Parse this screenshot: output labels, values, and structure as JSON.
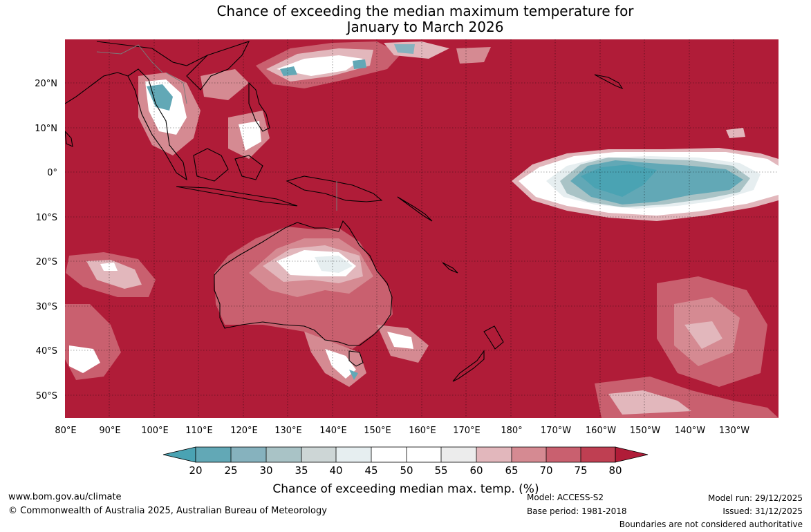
{
  "title": {
    "line1": "Chance of exceeding the median maximum temperature for",
    "line2": "January to March 2026"
  },
  "map": {
    "lon_labels": [
      "80°E",
      "90°E",
      "100°E",
      "110°E",
      "120°E",
      "130°E",
      "140°E",
      "150°E",
      "160°E",
      "170°E",
      "180°",
      "170°W",
      "160°W",
      "150°W",
      "140°W",
      "130°W"
    ],
    "lat_labels": [
      "20°N",
      "10°N",
      "0°",
      "10°S",
      "20°S",
      "30°S",
      "40°S",
      "50°S"
    ],
    "fill_colors": {
      "above_80": "#b01c38",
      "c75_80": "#bf3f52",
      "c70_75": "#c9606f",
      "c65_70": "#d58a92",
      "c60_65": "#e2b7bc",
      "c55_60": "#ececec",
      "c45_55": "#ffffff",
      "c40_45": "#e6eef0",
      "c35_40": "#cdd6d6",
      "c30_35": "#a9c3c6",
      "c25_30": "#86b2be",
      "c20_25": "#62a8b6",
      "below_20": "#4aa3b3"
    }
  },
  "colorbar": {
    "ticks": [
      "20",
      "25",
      "30",
      "35",
      "40",
      "45",
      "50",
      "55",
      "60",
      "65",
      "70",
      "75",
      "80"
    ],
    "label": "Chance of exceeding median max. temp. (%)",
    "colors": [
      "#62a8b6",
      "#86b2be",
      "#a9c3c6",
      "#cdd6d6",
      "#e6eef0",
      "#ffffff",
      "#ffffff",
      "#ececec",
      "#e2b7bc",
      "#d58a92",
      "#c9606f",
      "#bf3f52"
    ],
    "low_extend_color": "#4aa3b3",
    "high_extend_color": "#b01c38"
  },
  "footer": {
    "website": "www.bom.gov.au/climate",
    "copyright": "© Commonwealth of Australia 2025, Australian Bureau of Meteorology",
    "model": "Model: ACCESS-S2",
    "base_period": "Base period: 1981-2018",
    "model_run": "Model run: 29/12/2025",
    "issued": "Issued: 31/12/2025",
    "disclaimer": "Boundaries are not considered authoritative"
  }
}
